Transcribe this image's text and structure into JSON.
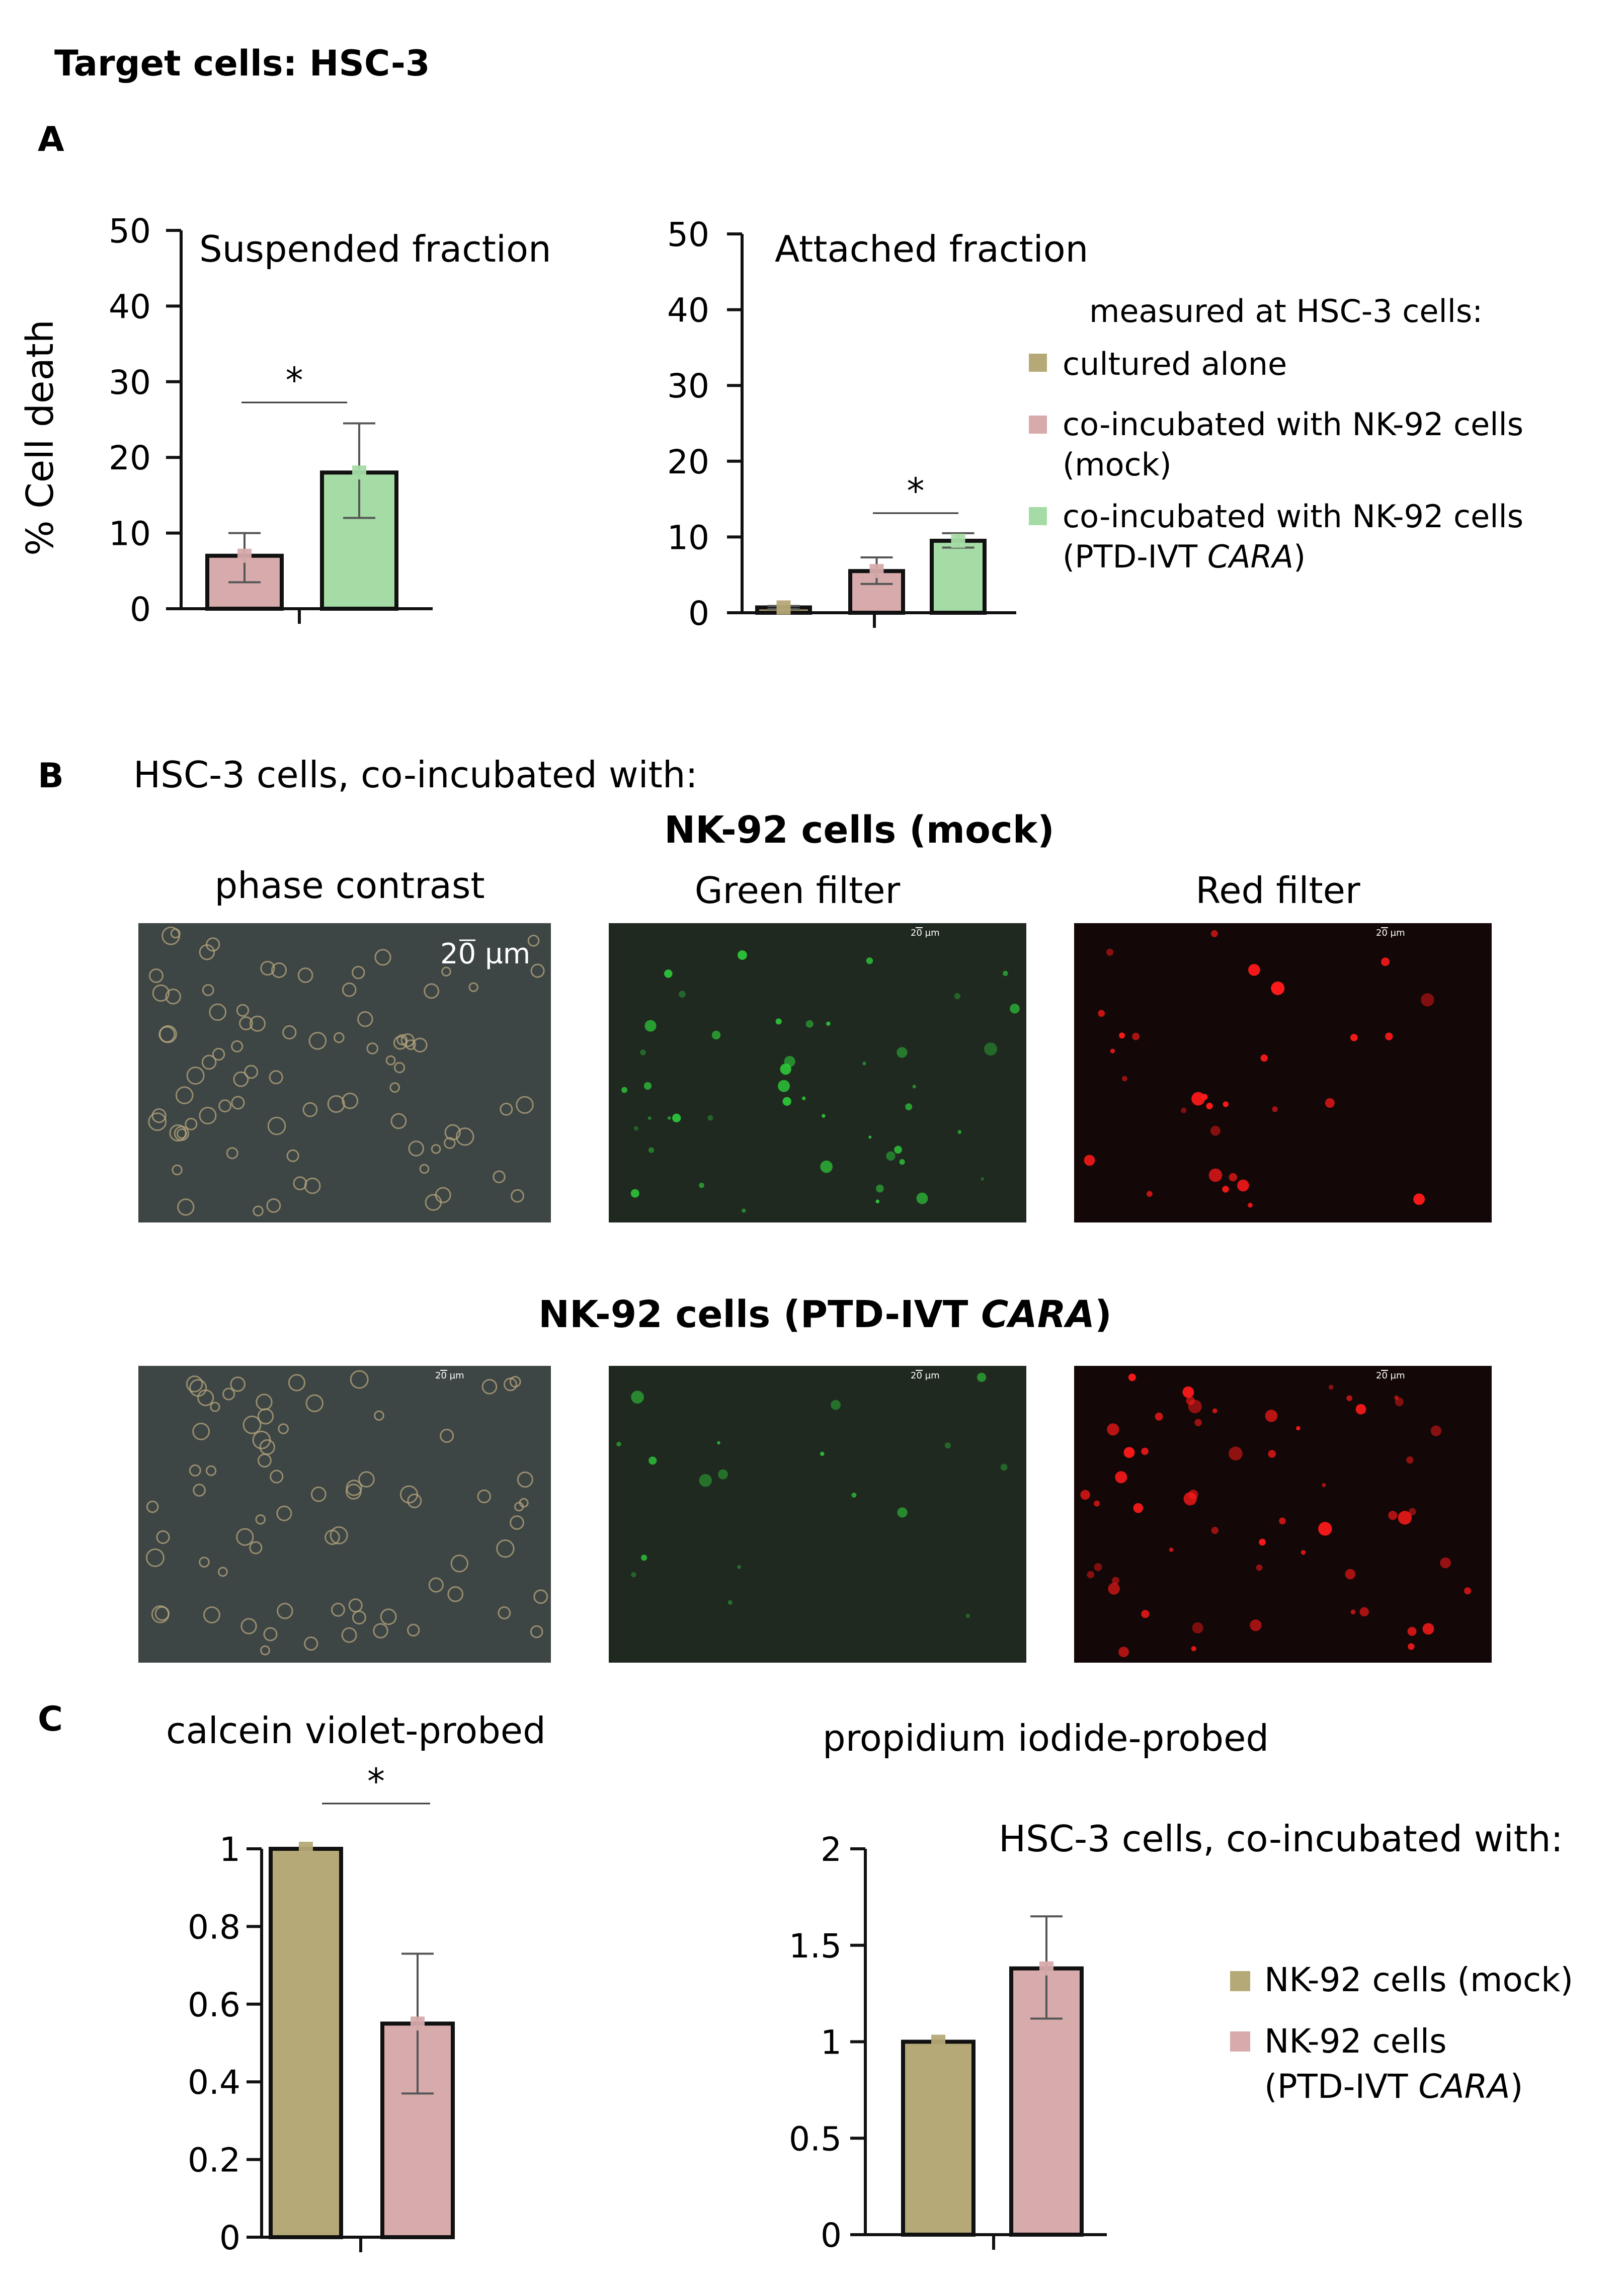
{
  "colors": {
    "mock": "#d7aaab",
    "cara": "#a5dca5",
    "alone": "#b5a977",
    "phase_bg": "#3d4545",
    "green_bg": "#1f2920",
    "red_bg": "#130707"
  },
  "header": {
    "title": "Target cells: HSC-3"
  },
  "panel_a": {
    "letter": "A",
    "chart_left_title": "Suspended fraction",
    "chart_right_title": "Attached fraction",
    "ylabel": "% Cell death",
    "legend": {
      "heading": "measured at HSC-3 cells:",
      "items": [
        {
          "lines": [
            "cultured alone"
          ],
          "italic": ""
        },
        {
          "lines": [
            "co-incubated with NK-92 cells",
            "(mock)"
          ],
          "italic": ""
        },
        {
          "lines": [
            "co-incubated with NK-92 cells",
            "(PTD-IVT "
          ],
          "italic": "CARA",
          "suffix": ")"
        }
      ]
    }
  },
  "panel_b": {
    "letter": "B",
    "heading": "HSC-3 cells, co-incubated with:",
    "row1_title": "NK-92 cells (mock)",
    "row2_title_prefix": "NK-92 cells (PTD-IVT ",
    "row2_title_italic": "CARA",
    "row2_title_suffix": ")",
    "col_phase": "phase contrast",
    "col_green": "Green filter",
    "col_red": "Red filter",
    "scale_bar": "20 µm",
    "scale_bar_small": "20 µm"
  },
  "panel_c": {
    "letter": "C",
    "left_title": "calcein violet-probed",
    "right_title": "propidium iodide-probed",
    "legend": {
      "heading": "HSC-3 cells, co-incubated with:",
      "items": [
        {
          "line1": "NK-92 cells (mock)"
        },
        {
          "line1": "NK-92 cells",
          "line2_prefix": "(PTD-IVT ",
          "line2_italic": "CARA",
          "line2_suffix": ")"
        }
      ]
    }
  },
  "chart_data": [
    {
      "type": "bar",
      "id": "A-suspended",
      "title": "Suspended fraction",
      "ylabel": "% Cell death",
      "ylim": [
        0,
        50
      ],
      "yticks": [
        "0",
        "10",
        "20",
        "30",
        "40",
        "50"
      ],
      "bars": [
        {
          "group": "co-incubated with NK-92 cells (mock)",
          "value": 7,
          "err_low": 3.5,
          "err_high": 10
        },
        {
          "group": "co-incubated with NK-92 cells (PTD-IVT CARA)",
          "value": 18,
          "err_low": 12,
          "err_high": 24.5
        }
      ],
      "significance": [
        {
          "from": 0,
          "to": 1,
          "label": "*"
        }
      ]
    },
    {
      "type": "bar",
      "id": "A-attached",
      "title": "Attached fraction",
      "ylim": [
        0,
        50
      ],
      "yticks": [
        "0",
        "10",
        "20",
        "30",
        "40",
        "50"
      ],
      "bars": [
        {
          "group": "cultured alone",
          "value": 0.7,
          "err_low": 0.5,
          "err_high": 0.9
        },
        {
          "group": "co-incubated with NK-92 cells (mock)",
          "value": 5.5,
          "err_low": 3.8,
          "err_high": 7.3
        },
        {
          "group": "co-incubated with NK-92 cells (PTD-IVT CARA)",
          "value": 9.5,
          "err_low": 8.6,
          "err_high": 10.5
        }
      ],
      "significance": [
        {
          "from": 1,
          "to": 2,
          "label": "*"
        }
      ]
    },
    {
      "type": "bar",
      "id": "C-calcein",
      "title": "calcein violet-probed",
      "ylim": [
        0,
        1
      ],
      "yticks": [
        "0",
        "0.2",
        "0.4",
        "0.6",
        "0.8",
        "1"
      ],
      "bars": [
        {
          "group": "NK-92 cells (mock)",
          "value": 1.0,
          "err_low": 1.0,
          "err_high": 1.0
        },
        {
          "group": "NK-92 cells (PTD-IVT CARA)",
          "value": 0.55,
          "err_low": 0.37,
          "err_high": 0.73
        }
      ],
      "significance": [
        {
          "from": 0,
          "to": 1,
          "label": "*"
        }
      ]
    },
    {
      "type": "bar",
      "id": "C-pi",
      "title": "propidium iodide-probed",
      "ylim": [
        0,
        2
      ],
      "yticks": [
        "0",
        "0.5",
        "1",
        "1.5",
        "2"
      ],
      "bars": [
        {
          "group": "NK-92 cells (mock)",
          "value": 1.0,
          "err_low": 1.0,
          "err_high": 1.0
        },
        {
          "group": "NK-92 cells (PTD-IVT CARA)",
          "value": 1.38,
          "err_low": 1.12,
          "err_high": 1.65
        }
      ],
      "significance": []
    }
  ]
}
